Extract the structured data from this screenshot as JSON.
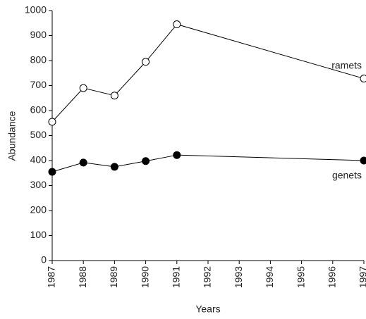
{
  "chart_data": {
    "type": "line",
    "x": [
      1987,
      1988,
      1989,
      1990,
      1991,
      1997
    ],
    "series": [
      {
        "name": "ramets",
        "color": "#000000",
        "marker": "open",
        "values": [
          555,
          690,
          660,
          795,
          945,
          728
        ]
      },
      {
        "name": "genets",
        "color": "#000000",
        "marker": "filled",
        "values": [
          355,
          392,
          375,
          398,
          422,
          400
        ]
      }
    ],
    "xlabel": "Years",
    "ylabel": "Abundance",
    "xlim": [
      1987,
      1997
    ],
    "xticks": [
      1987,
      1988,
      1989,
      1990,
      1991,
      1992,
      1993,
      1994,
      1995,
      1996,
      1997
    ],
    "ylim": [
      0,
      1000
    ],
    "yticks": [
      0,
      100,
      200,
      300,
      400,
      500,
      600,
      700,
      800,
      900,
      1000
    ],
    "grid": false
  }
}
